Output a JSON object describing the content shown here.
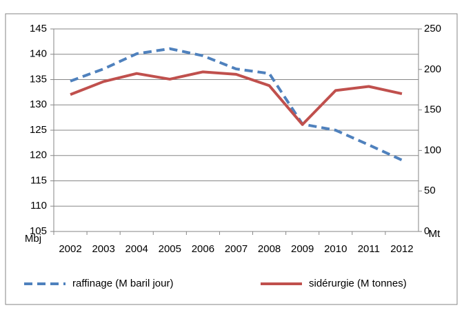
{
  "chart_data": {
    "type": "line",
    "categories": [
      "2002",
      "2003",
      "2004",
      "2005",
      "2006",
      "2007",
      "2008",
      "2009",
      "2010",
      "2011",
      "2012"
    ],
    "series": [
      {
        "name": "raffinage (M baril jour)",
        "color": "#4f81bd",
        "dash": true,
        "values": [
          134.7,
          137.1,
          140.1,
          141.1,
          139.7,
          137.1,
          136.2,
          126.2,
          125.0,
          122.1,
          119.1
        ]
      },
      {
        "name": "sidérurgie (M tonnes)",
        "color": "#c0504d",
        "axis": "y2",
        "values": [
          169,
          185,
          195,
          188,
          197,
          194,
          180,
          132,
          174,
          179,
          170
        ]
      }
    ],
    "ylabel": "Mbj",
    "y2label": "Mt",
    "ylim": [
      105,
      145
    ],
    "yticks": [
      105,
      110,
      115,
      120,
      125,
      130,
      135,
      140,
      145
    ],
    "y2lim": [
      0,
      250
    ],
    "y2ticks": [
      0,
      50,
      100,
      150,
      200,
      250
    ],
    "grid": true,
    "legend": "bottom"
  }
}
